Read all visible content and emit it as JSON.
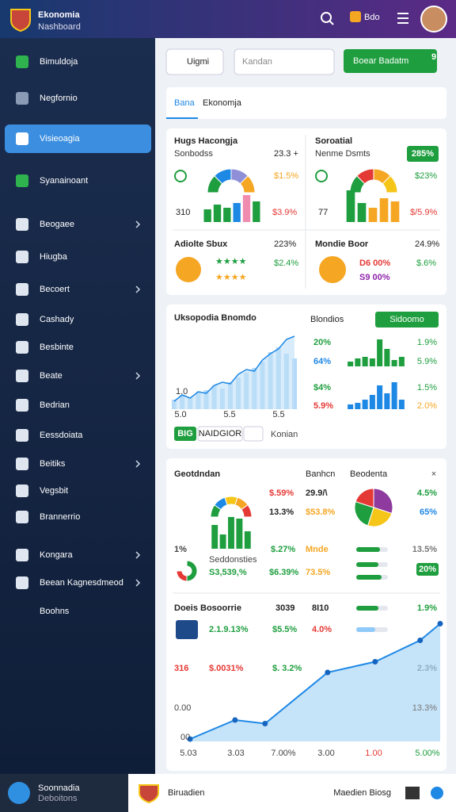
{
  "header": {
    "title": "Ekonomia",
    "subtitle": "Nashboard",
    "badge": "Bdo"
  },
  "sidebar": {
    "active_item": 2,
    "items": [
      {
        "label": "Bimuldoja",
        "chevron": false
      },
      {
        "label": "Negfornio",
        "chevron": false
      },
      {
        "label": "Visieoagia",
        "chevron": false
      },
      {
        "label": "Syanainoant",
        "chevron": false
      },
      {
        "label": "Beogaee",
        "chevron": true
      },
      {
        "label": "Hiugba",
        "chevron": false
      },
      {
        "label": "Becoert",
        "chevron": true
      },
      {
        "label": "Cashady",
        "chevron": false
      },
      {
        "label": "Besbinte",
        "chevron": false
      },
      {
        "label": "Beate",
        "chevron": true
      },
      {
        "label": "Bedrian",
        "chevron": false
      },
      {
        "label": "Eessdoiata",
        "chevron": false
      },
      {
        "label": "Beitiks",
        "chevron": true
      },
      {
        "label": "Vegsbit",
        "chevron": false
      },
      {
        "label": "Brannerrio",
        "chevron": false
      },
      {
        "label": "Kongara",
        "chevron": true
      },
      {
        "label": "Beean Kagnesdmeod",
        "chevron": true
      },
      {
        "label": "Boohns",
        "chevron": false
      }
    ]
  },
  "toolbar": {
    "button": "Uigmi",
    "input": "Kandan",
    "action": "Boear Badatm",
    "action_badge": "9"
  },
  "tabs": {
    "items": [
      "Bana",
      "Ekonomja"
    ]
  },
  "card1": {
    "left": {
      "title": "Hugs Hacongja",
      "subtitle": "Sonbodss",
      "stat": "23.3 +",
      "stat2": "$1.5%",
      "label": "310",
      "stat3": "$3.9%",
      "row_title": "Adiolte Sbux",
      "row_value": "223%",
      "row_value2": "$2.4%",
      "donut": {
        "values": [
          25,
          25,
          25,
          25
        ],
        "colors": [
          "#1e9e3e",
          "#1e88e5",
          "#8e8fd6",
          "#f5a623"
        ]
      },
      "bars": {
        "values": [
          16,
          22,
          18,
          24,
          34,
          26
        ],
        "colors": [
          "#1e9e3e",
          "#1e9e3e",
          "#1e9e3e",
          "#1e88e5",
          "#f08cb0",
          "#1e9e3e"
        ]
      }
    },
    "right": {
      "title": "Soroatial",
      "subtitle": "Nenme Dsmts",
      "badge": "285%",
      "stat": "$23%",
      "label": "77",
      "stat2": "$/5.9%",
      "row_title": "Mondie Boor",
      "row_value": "24.9%",
      "row_value2": "D6 00%",
      "row_value3": "S9 00%",
      "row_value4": "$.6%",
      "donut": {
        "values": [
          25,
          25,
          25,
          25
        ],
        "colors": [
          "#1e9e3e",
          "#e53935",
          "#f5a623",
          "#f5c518"
        ]
      },
      "bars": {
        "values": [
          40,
          24,
          18,
          30,
          26
        ],
        "colors": [
          "#1e9e3e",
          "#1e9e3e",
          "#f5a623",
          "#f5a623",
          "#f5a623"
        ]
      }
    }
  },
  "card2": {
    "title": "Uksopodia Bnomdo",
    "y_label": "1.0",
    "x_labels": [
      "5.0",
      "5.5",
      "5.5"
    ],
    "buttons": [
      "BIG",
      "NAIDGIOR"
    ],
    "link": "Konian",
    "side_title": "Blondios",
    "side_button": "Sidoomo",
    "rows": [
      [
        "20%",
        "1.9%"
      ],
      [
        "64%",
        "5.9%"
      ],
      [
        "$4%",
        "1.5%"
      ],
      [
        "5.9%",
        "2.0%"
      ]
    ],
    "area": {
      "values": [
        10,
        18,
        14,
        22,
        20,
        30,
        34,
        32,
        44,
        50,
        48,
        62,
        70,
        76,
        88,
        92
      ],
      "bars": [
        12,
        18,
        14,
        22,
        24,
        30,
        26,
        34,
        40,
        46,
        52,
        60,
        72,
        78,
        70,
        64
      ]
    },
    "minibars1": {
      "values": [
        6,
        10,
        12,
        10,
        34,
        22,
        8,
        12
      ],
      "color": "#1e9e3e"
    },
    "minibars2": {
      "values": [
        6,
        8,
        12,
        18,
        30,
        20,
        34,
        12
      ],
      "color": "#1e88e5"
    }
  },
  "card3": {
    "title": "Geotdndan",
    "col1": "Banhcn",
    "col2": "Beodenta",
    "close": "×",
    "texts": [
      "$.59%",
      "29.9/\\",
      "13.3%",
      "$53.8%",
      "4.5%",
      "65%",
      "1%",
      "$.27%",
      "Mnde",
      "13.5%",
      "Seddonsties",
      "S3,539,%",
      "$6.39%",
      "73.5%",
      "20%"
    ],
    "arch": {
      "values": [
        20,
        20,
        20,
        20,
        20
      ],
      "colors": [
        "#1e9e3e",
        "#1e88e5",
        "#f5c518",
        "#f5a623",
        "#e53935"
      ]
    },
    "arch_bars": {
      "values": [
        30,
        18,
        40,
        38,
        22
      ],
      "color": "#1e9e3e"
    },
    "pie": {
      "values": [
        30,
        25,
        25,
        20
      ],
      "colors": [
        "#8e3a9e",
        "#f5c518",
        "#1e9e3e",
        "#e53935"
      ]
    },
    "small_donut": {
      "values": [
        50,
        25,
        25
      ],
      "colors": [
        "#1e9e3e",
        "#e53935",
        "#ffffff"
      ]
    },
    "progress": {
      "values": [
        75,
        70,
        80,
        60,
        70
      ],
      "colors": [
        "#1e9e3e",
        "#1e9e3e",
        "#1e9e3e",
        "#90caf9",
        "#1e9e3e"
      ]
    },
    "lower_title": "Doeis Bosoorrie",
    "lower_texts": [
      "3039",
      "8I10",
      "1.9%",
      "2.1.9.13%",
      "$5.5%",
      "4.0%",
      "316",
      "$.0031%",
      "$. 3.2%",
      "2.3%"
    ],
    "line": {
      "x": [
        0,
        1.8,
        3,
        5.5,
        7.4,
        9.2,
        10
      ],
      "values": [
        2,
        18,
        15,
        58,
        67,
        85,
        99
      ],
      "xlim": [
        0,
        10
      ],
      "ylim": [
        0,
        100
      ]
    },
    "y_labels": [
      "0.00",
      "00"
    ],
    "y2_label": "13.3%",
    "x_labels": [
      "5.03",
      "3.03",
      "7.00%",
      "3.00",
      "1.00",
      "5.00%"
    ]
  },
  "footer": {
    "name": "Soonnadia",
    "role": "Deboitons",
    "brand": "Biruadien",
    "link": "Maedien Biosg"
  }
}
